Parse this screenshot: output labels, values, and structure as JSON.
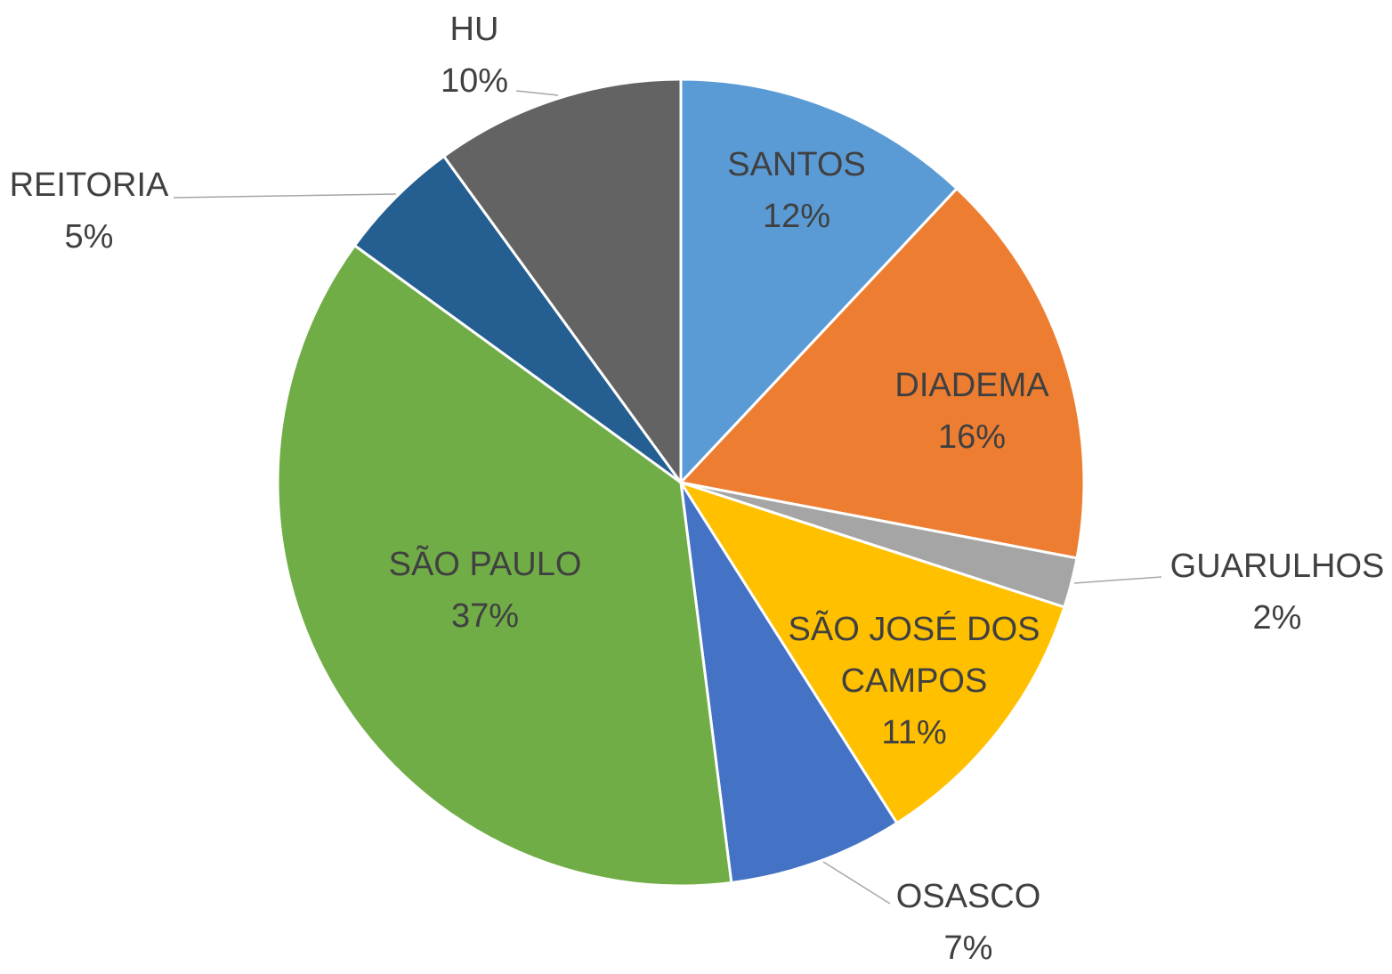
{
  "chart_data": {
    "type": "pie",
    "categories": [
      "SANTOS",
      "DIADEMA",
      "GUARULHOS",
      "SÃO JOSÉ DOS CAMPOS",
      "OSASCO",
      "SÃO PAULO",
      "REITORIA",
      "HU"
    ],
    "values": [
      12,
      16,
      2,
      11,
      7,
      37,
      5,
      10
    ],
    "value_labels": [
      "12%",
      "16%",
      "2%",
      "11%",
      "7%",
      "37%",
      "5%",
      "10%"
    ],
    "colors": [
      "#5b9bd5",
      "#ed7d31",
      "#a5a5a5",
      "#ffc000",
      "#4472c4",
      "#70ad47",
      "#255e91",
      "#636363"
    ]
  }
}
